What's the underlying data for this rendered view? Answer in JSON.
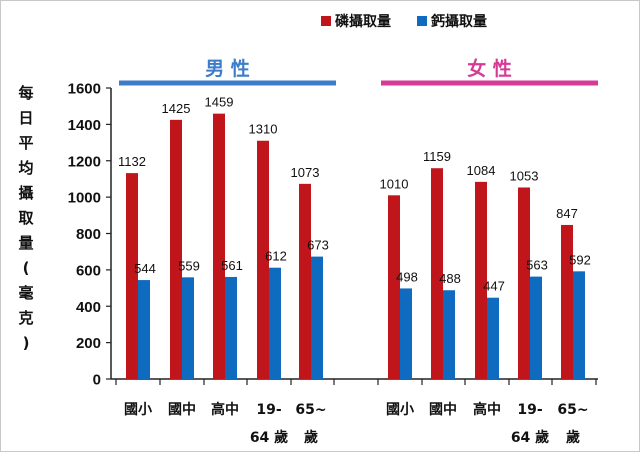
{
  "chart_data": {
    "type": "bar",
    "title": "",
    "ylabel": "每日平均攝取量(毫克)",
    "xlabel": "",
    "ylim": [
      0,
      1600
    ],
    "yticks": [
      0,
      200,
      400,
      600,
      800,
      1000,
      1200,
      1400,
      1600
    ],
    "grid": false,
    "legend_position": "top-right",
    "groups": [
      {
        "label": "男 性",
        "color": "#3d7cc9",
        "categories": [
          [
            "國小"
          ],
          [
            "國中"
          ],
          [
            "高中"
          ],
          [
            "19-",
            "64 歲"
          ],
          [
            "65~",
            "歲"
          ]
        ]
      },
      {
        "label": "女 性",
        "color": "#d63a96",
        "categories": [
          [
            "國小"
          ],
          [
            "國中"
          ],
          [
            "高中"
          ],
          [
            "19-",
            "64 歲"
          ],
          [
            "65~",
            "歲"
          ]
        ]
      }
    ],
    "series": [
      {
        "name": "磷攝取量",
        "color": "#c0161b",
        "values": [
          1132,
          1425,
          1459,
          1310,
          1073,
          1010,
          1159,
          1084,
          1053,
          847
        ]
      },
      {
        "name": "鈣攝取量",
        "color": "#0f6bbf",
        "values": [
          544,
          559,
          561,
          612,
          673,
          498,
          488,
          447,
          563,
          592
        ]
      }
    ]
  }
}
